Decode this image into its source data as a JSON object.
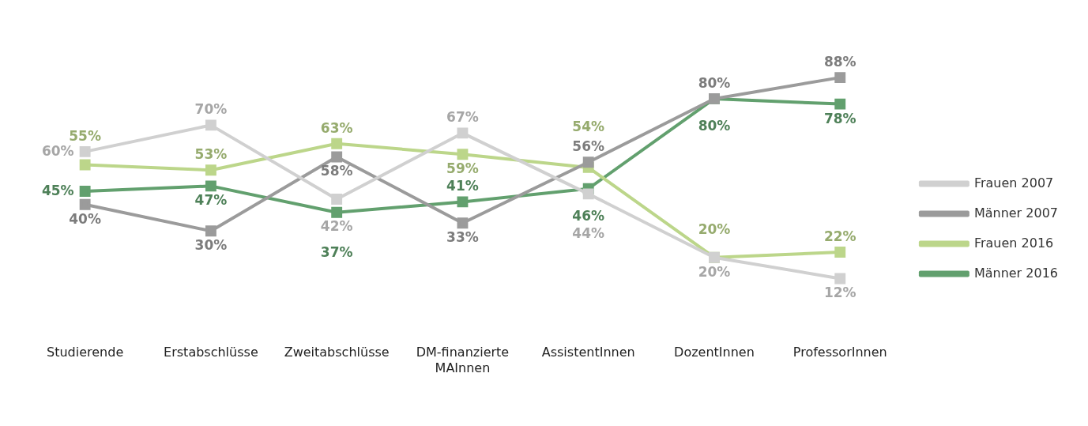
{
  "chart_data": {
    "type": "line",
    "categories": [
      "Studierende",
      "Erstabschlüsse",
      "Zweitabschlüsse",
      "DM-finanzierte MAInnen",
      "AssistentInnen",
      "DozentInnen",
      "ProfessorInnen"
    ],
    "series": [
      {
        "name": "Frauen 2007",
        "color": "#d0d0d0",
        "values": [
          60,
          70,
          42,
          67,
          44,
          20,
          12
        ],
        "value_labels": [
          "60%",
          "70%",
          "42%",
          "67%",
          "44%",
          "20%",
          "12%"
        ]
      },
      {
        "name": "Männer 2007",
        "color": "#9b9b9b",
        "values": [
          40,
          30,
          58,
          33,
          56,
          80,
          88
        ],
        "value_labels": [
          "40%",
          "30%",
          "58%",
          "33%",
          "56%",
          "80%",
          "88%"
        ]
      },
      {
        "name": "Frauen 2016",
        "color": "#bcd68a",
        "values": [
          55,
          53,
          63,
          59,
          54,
          20,
          22
        ],
        "value_labels": [
          "55%",
          "53%",
          "63%",
          "59%",
          "54%",
          "20%",
          "22%"
        ]
      },
      {
        "name": "Männer 2016",
        "color": "#62a06e",
        "values": [
          45,
          47,
          37,
          41,
          46,
          80,
          78
        ],
        "value_labels": [
          "45%",
          "47%",
          "37%",
          "41%",
          "46%",
          "80%",
          "78%"
        ]
      }
    ],
    "grid": false,
    "legend": "right",
    "marker": "square",
    "line_style": "solid"
  }
}
